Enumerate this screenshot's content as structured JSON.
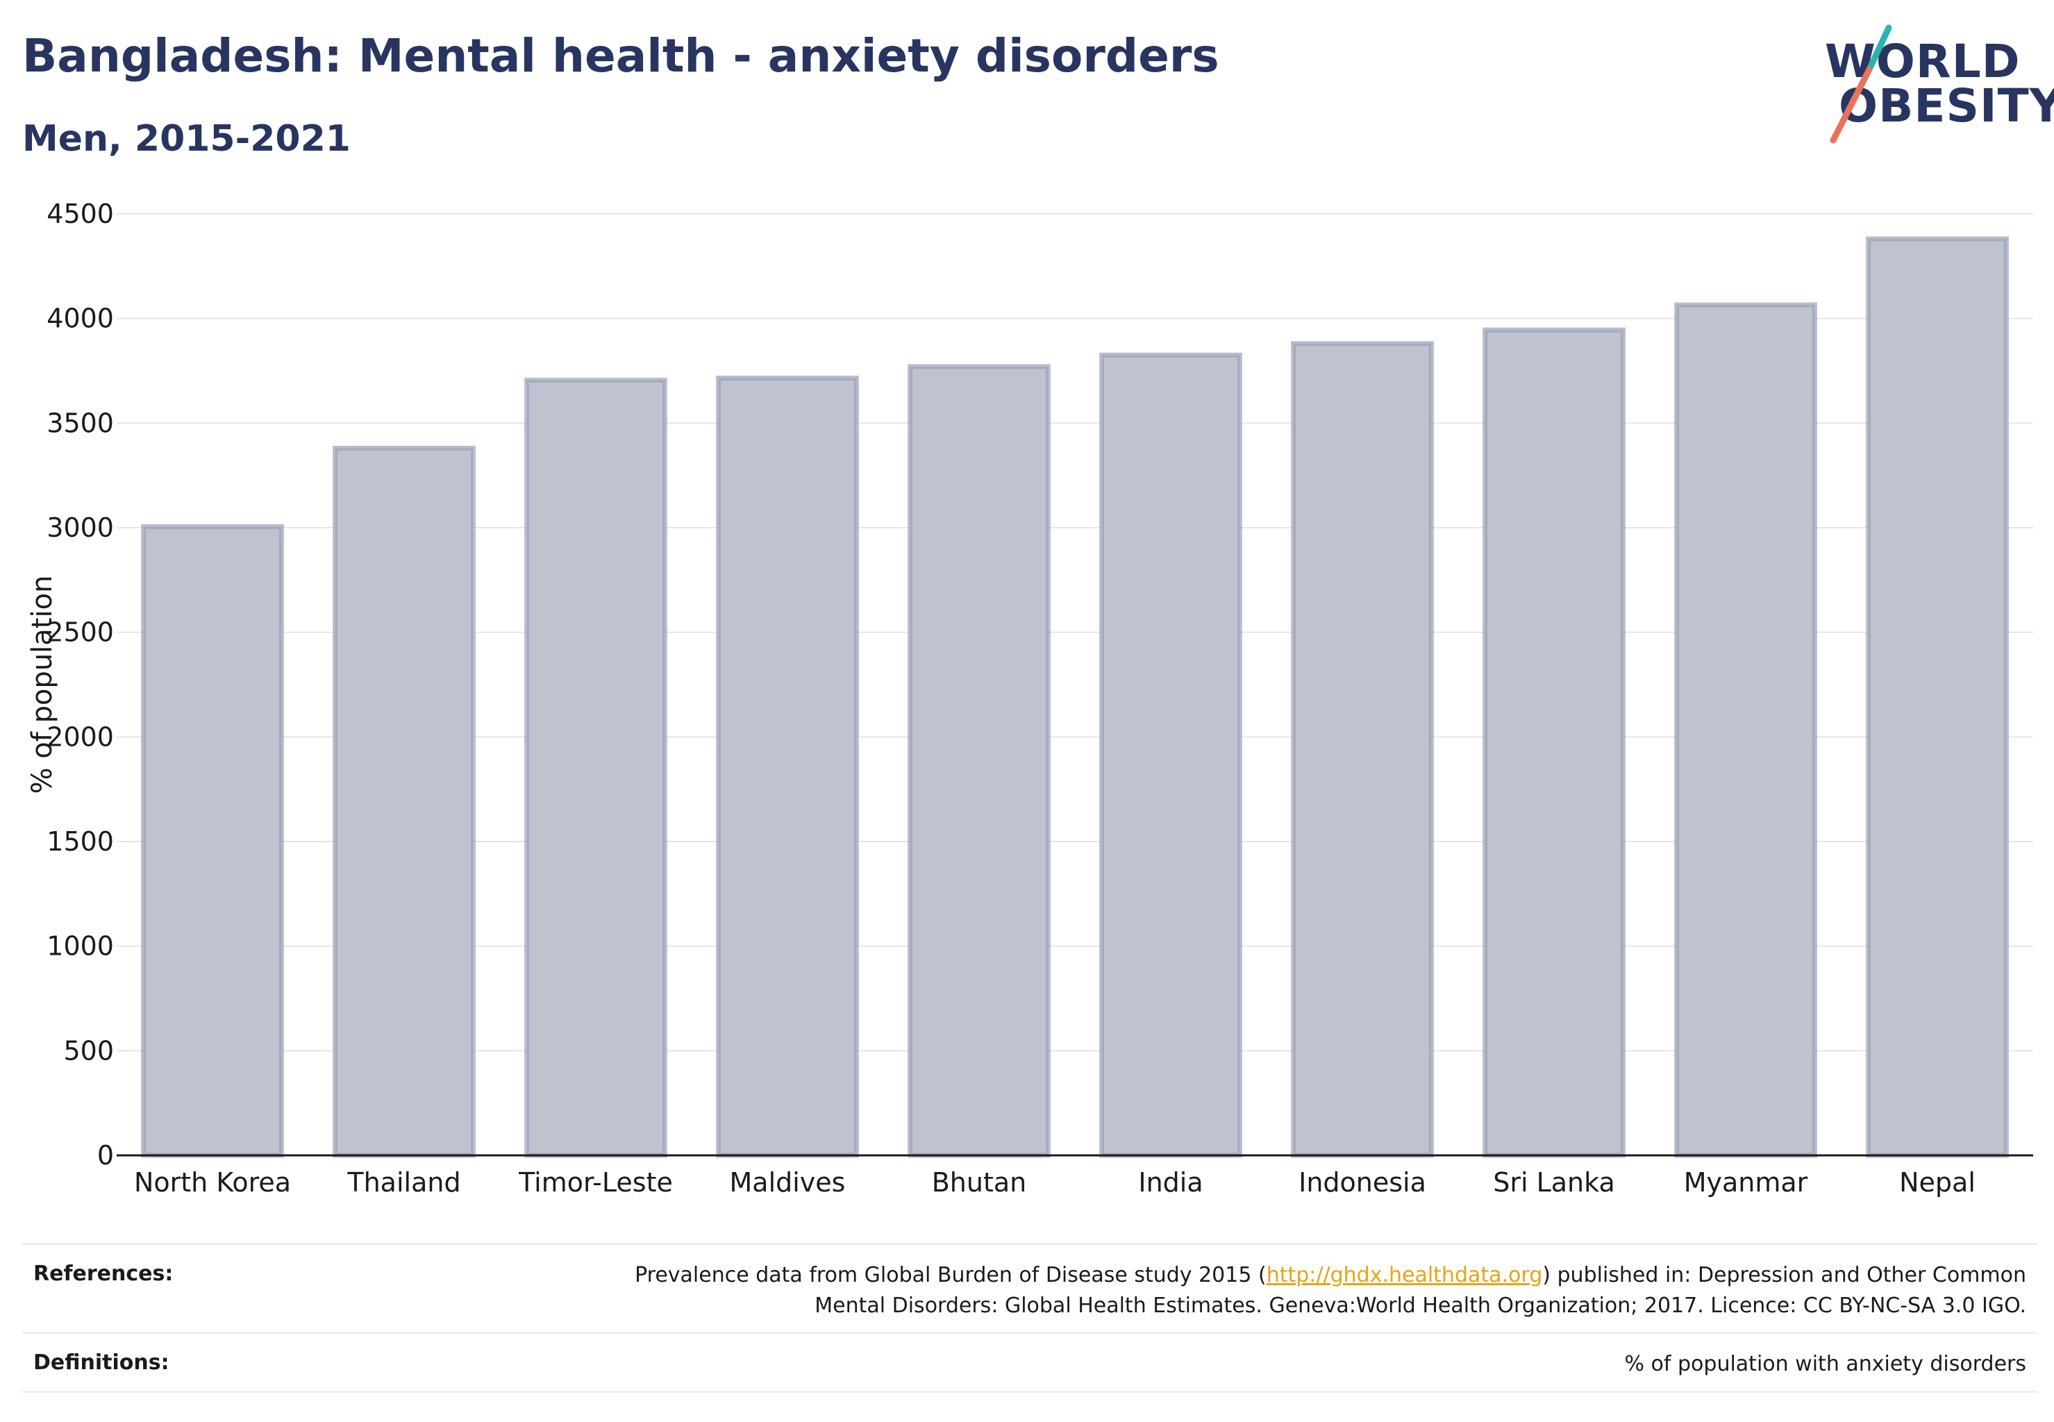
{
  "header": {
    "title": "Bangladesh: Mental health - anxiety disorders",
    "subtitle": "Men, 2015-2021"
  },
  "logo": {
    "line1": "WORLD",
    "line2": "OBESITY",
    "accent_colors": [
      "#2ab3b1",
      "#e8735a"
    ]
  },
  "chart_data": {
    "type": "bar",
    "categories": [
      "North Korea",
      "Thailand",
      "Timor-Leste",
      "Maldives",
      "Bhutan",
      "India",
      "Indonesia",
      "Sri Lanka",
      "Myanmar",
      "Nepal"
    ],
    "values": [
      3005,
      3380,
      3705,
      3715,
      3770,
      3825,
      3880,
      3945,
      4065,
      4380
    ],
    "ylabel": "% of population",
    "ylim": [
      0,
      4500
    ],
    "yticks": [
      0,
      500,
      1000,
      1500,
      2000,
      2500,
      3000,
      3500,
      4000,
      4500
    ],
    "grid": true,
    "bar_fill": "#bfc3d0",
    "bar_stroke": "#9aa1b8"
  },
  "footer": {
    "references_label": "References:",
    "references_pre": "Prevalence data from Global Burden of Disease study 2015 (",
    "references_link": "http://ghdx.healthdata.org",
    "references_post": ") published in: Depression and Other Common",
    "references_line2": "Mental Disorders: Global Health Estimates. Geneva:World Health Organization; 2017. Licence: CC BY-NC-SA 3.0 IGO.",
    "definitions_label": "Definitions:",
    "definitions_text": "% of population with anxiety disorders"
  }
}
